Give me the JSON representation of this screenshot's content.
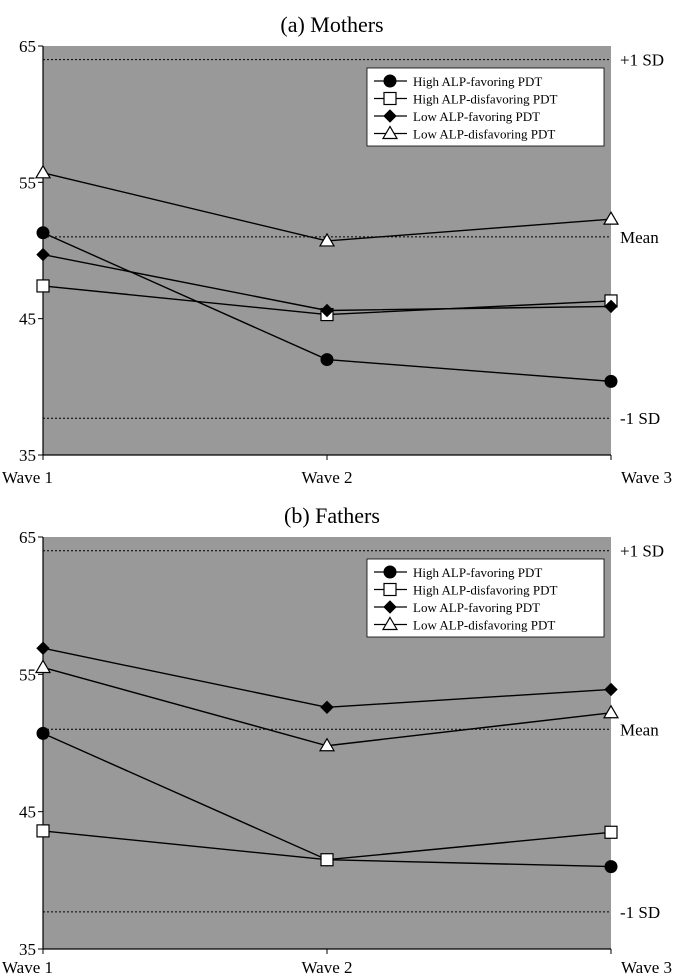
{
  "chart_data": [
    {
      "type": "line",
      "title": "(a) Mothers",
      "categories": [
        "Wave 1",
        "Wave 2",
        "Wave 3"
      ],
      "ylim": [
        35,
        65
      ],
      "yticks": [
        "35",
        "45",
        "55",
        "65"
      ],
      "reference_lines": [
        {
          "label": "+1 SD",
          "value": 64
        },
        {
          "label": "Mean",
          "value": 51
        },
        {
          "label": "-1 SD",
          "value": 37.7
        }
      ],
      "background": "#999999",
      "grid": false,
      "legend_position": "top-right",
      "series": [
        {
          "name": "High ALP-favoring PDT",
          "marker": "circle",
          "values": [
            51.3,
            42.0,
            40.4
          ]
        },
        {
          "name": "High ALP-disfavoring PDT",
          "marker": "square",
          "values": [
            47.4,
            45.3,
            46.3
          ]
        },
        {
          "name": "Low ALP-favoring PDT",
          "marker": "diamond",
          "values": [
            49.7,
            45.6,
            45.9
          ]
        },
        {
          "name": "Low ALP-disfavoring PDT",
          "marker": "triangle",
          "values": [
            55.7,
            50.7,
            52.3
          ]
        }
      ]
    },
    {
      "type": "line",
      "title": "(b) Fathers",
      "categories": [
        "Wave 1",
        "Wave 2",
        "Wave 3"
      ],
      "ylim": [
        35,
        65
      ],
      "yticks": [
        "35",
        "45",
        "55",
        "65"
      ],
      "reference_lines": [
        {
          "label": "+1 SD",
          "value": 64
        },
        {
          "label": "Mean",
          "value": 51
        },
        {
          "label": "-1 SD",
          "value": 37.7
        }
      ],
      "background": "#999999",
      "grid": false,
      "legend_position": "top-right",
      "series": [
        {
          "name": "High ALP-favoring PDT",
          "marker": "circle",
          "values": [
            50.7,
            41.5,
            41.0
          ]
        },
        {
          "name": "High ALP-disfavoring PDT",
          "marker": "square",
          "values": [
            43.6,
            41.5,
            43.5
          ]
        },
        {
          "name": "Low ALP-favoring PDT",
          "marker": "diamond",
          "values": [
            56.9,
            52.6,
            53.9
          ]
        },
        {
          "name": "Low ALP-disfavoring PDT",
          "marker": "triangle",
          "values": [
            55.5,
            49.8,
            52.2
          ]
        }
      ]
    }
  ]
}
